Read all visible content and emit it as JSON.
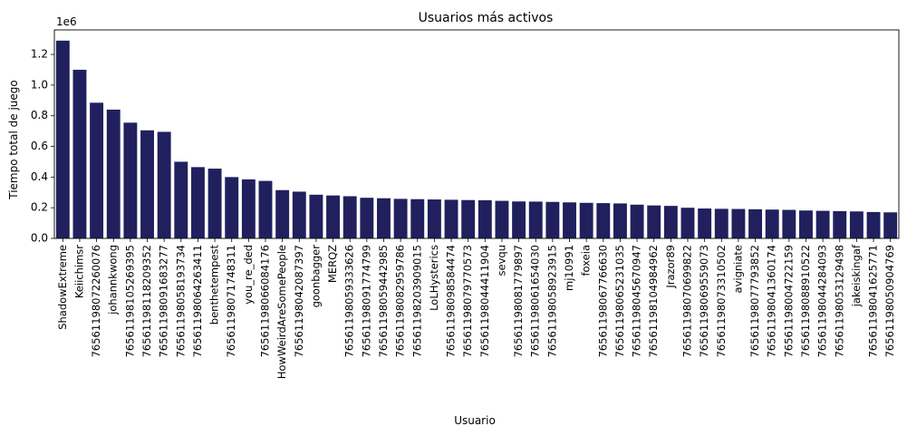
{
  "chart_data": {
    "type": "bar",
    "title": "Usuarios más activos",
    "xlabel": "Usuario",
    "ylabel": "Tiempo total de juego",
    "y_offset_label": "1e6",
    "y_tick_values": [
      0.0,
      0.2,
      0.4,
      0.6,
      0.8,
      1.0,
      1.2
    ],
    "y_tick_labels": [
      "0.0",
      "0.2",
      "0.4",
      "0.6",
      "0.8",
      "1.0",
      "1.2"
    ],
    "ylim": [
      0,
      1.36
    ],
    "bar_color": "#20205f",
    "grid": false,
    "categories": [
      "ShadowExtreme",
      "Keiichimsr",
      "76561198072260076",
      "johannkwong",
      "76561198105269395",
      "76561198118209352",
      "76561198091683277",
      "76561198058193734",
      "76561198064263411",
      "benthetempest",
      "76561198071748311",
      "you_re_ded",
      "76561198066084176",
      "HowWeirdAreSomePeople",
      "76561198042087397",
      "goonbagger",
      "MERQZ",
      "76561198059333626",
      "76561198091774799",
      "76561198059442985",
      "76561198082959786",
      "76561198203909015",
      "LoLHysterics",
      "76561198098584474",
      "76561198079770573",
      "76561198044411904",
      "sevqu",
      "76561198081779897",
      "76561198061654030",
      "76561198058923915",
      "mj10991",
      "foxeia",
      "76561198067766630",
      "76561198065231035",
      "76561198045670947",
      "76561198104984962",
      "Jrazor89",
      "76561198070699822",
      "76561198069559073",
      "76561198073310502",
      "avigniate",
      "76561198077793852",
      "76561198041360174",
      "76561198004722159",
      "76561198088910522",
      "76561198044284093",
      "76561198053129498",
      "jakeiskingaf",
      "76561198041625771",
      "76561198050904769"
    ],
    "values": [
      1.29,
      1.1,
      0.885,
      0.84,
      0.755,
      0.705,
      0.695,
      0.5,
      0.465,
      0.455,
      0.4,
      0.385,
      0.375,
      0.315,
      0.305,
      0.285,
      0.28,
      0.275,
      0.265,
      0.262,
      0.258,
      0.256,
      0.254,
      0.252,
      0.25,
      0.249,
      0.245,
      0.241,
      0.24,
      0.238,
      0.235,
      0.232,
      0.23,
      0.228,
      0.22,
      0.215,
      0.212,
      0.2,
      0.195,
      0.193,
      0.192,
      0.19,
      0.188,
      0.186,
      0.182,
      0.18,
      0.178,
      0.176,
      0.172,
      0.17
    ]
  }
}
